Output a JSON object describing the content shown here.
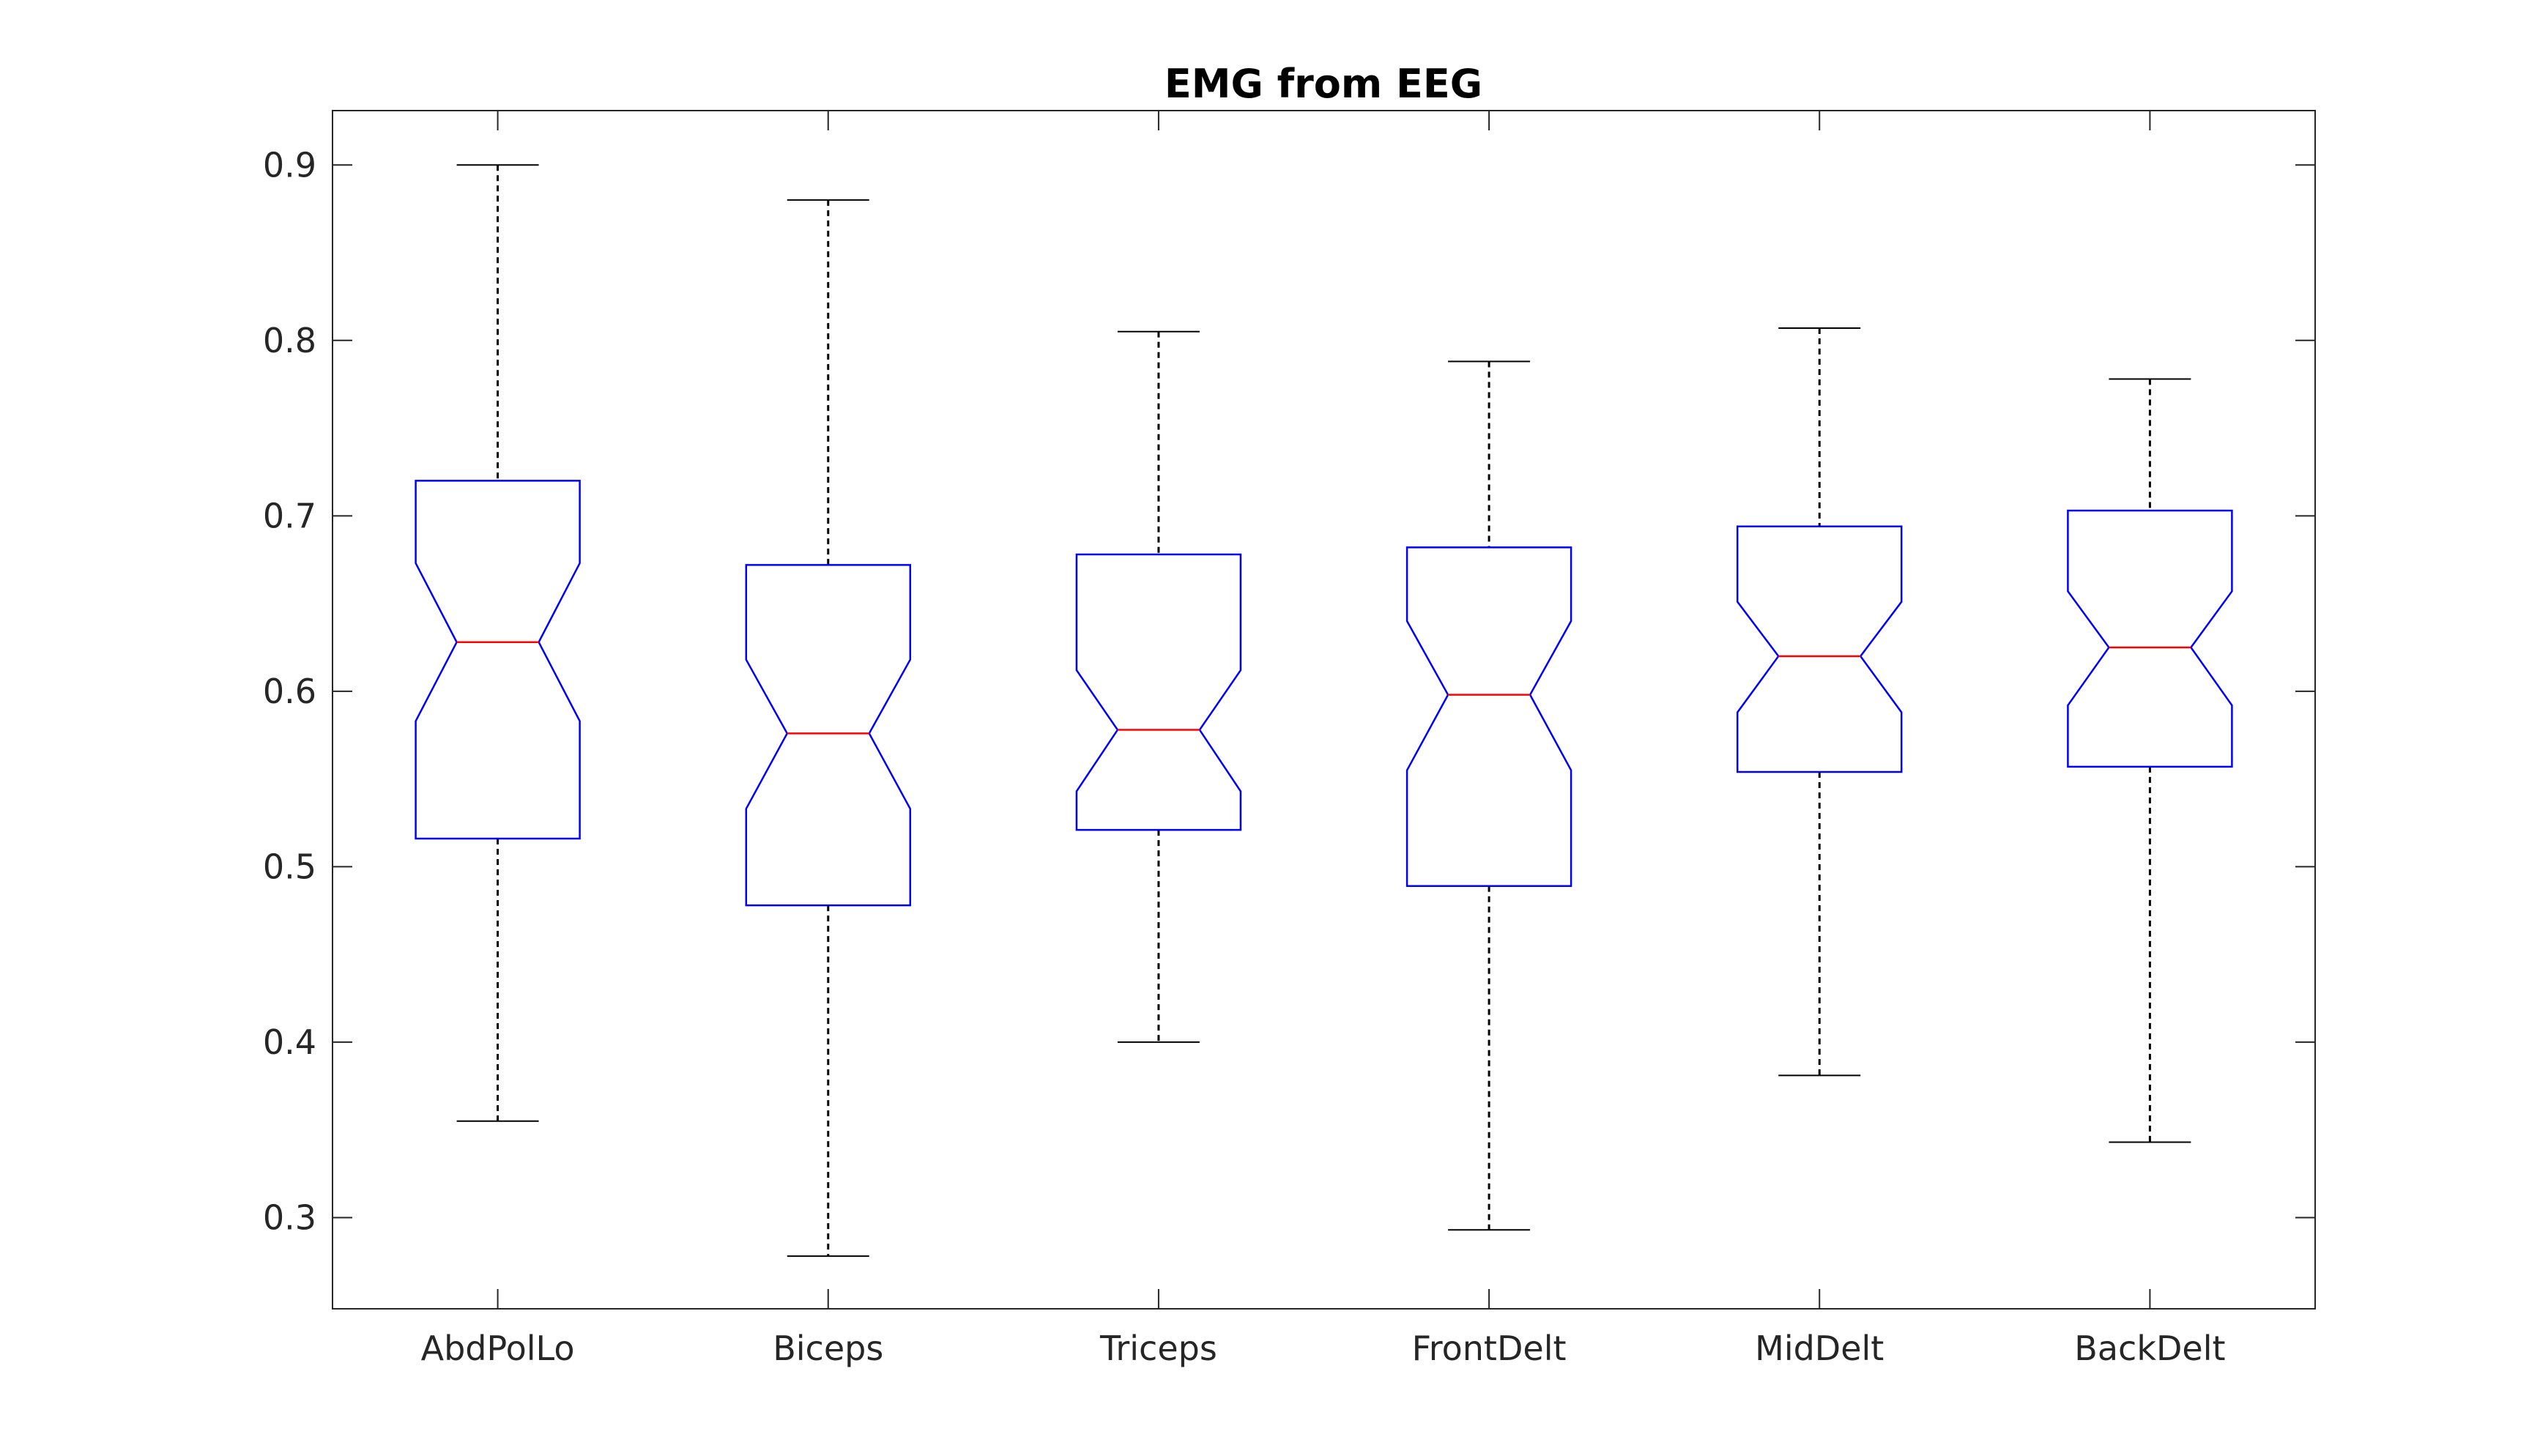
{
  "chart_data": {
    "type": "boxplot",
    "title": "EMG from EEG",
    "xlabel": "",
    "ylabel": "",
    "categories": [
      "AbdPolLo",
      "Biceps",
      "Triceps",
      "FrontDelt",
      "MidDelt",
      "BackDelt"
    ],
    "ylim": [
      0.248,
      0.931
    ],
    "yticks": [
      0.3,
      0.4,
      0.5,
      0.6,
      0.7,
      0.8,
      0.9
    ],
    "ytick_labels": [
      "0.3",
      "0.4",
      "0.5",
      "0.6",
      "0.7",
      "0.8",
      "0.9"
    ],
    "notched": true,
    "grid": false,
    "boxes": [
      {
        "whisker_low": 0.355,
        "q1": 0.516,
        "notch_low": 0.583,
        "median": 0.628,
        "notch_high": 0.673,
        "q3": 0.72,
        "whisker_high": 0.9
      },
      {
        "whisker_low": 0.278,
        "q1": 0.478,
        "notch_low": 0.533,
        "median": 0.576,
        "notch_high": 0.618,
        "q3": 0.672,
        "whisker_high": 0.88
      },
      {
        "whisker_low": 0.4,
        "q1": 0.521,
        "notch_low": 0.543,
        "median": 0.578,
        "notch_high": 0.612,
        "q3": 0.678,
        "whisker_high": 0.805
      },
      {
        "whisker_low": 0.293,
        "q1": 0.489,
        "notch_low": 0.555,
        "median": 0.598,
        "notch_high": 0.64,
        "q3": 0.682,
        "whisker_high": 0.788
      },
      {
        "whisker_low": 0.381,
        "q1": 0.554,
        "notch_low": 0.588,
        "median": 0.62,
        "notch_high": 0.651,
        "q3": 0.694,
        "whisker_high": 0.807
      },
      {
        "whisker_low": 0.343,
        "q1": 0.557,
        "notch_low": 0.592,
        "median": 0.625,
        "notch_high": 0.657,
        "q3": 0.703,
        "whisker_high": 0.778
      }
    ],
    "colors": {
      "box": "#0000ff",
      "median": "#ff0000",
      "whisker": "#000000",
      "axis": "#262626"
    }
  }
}
